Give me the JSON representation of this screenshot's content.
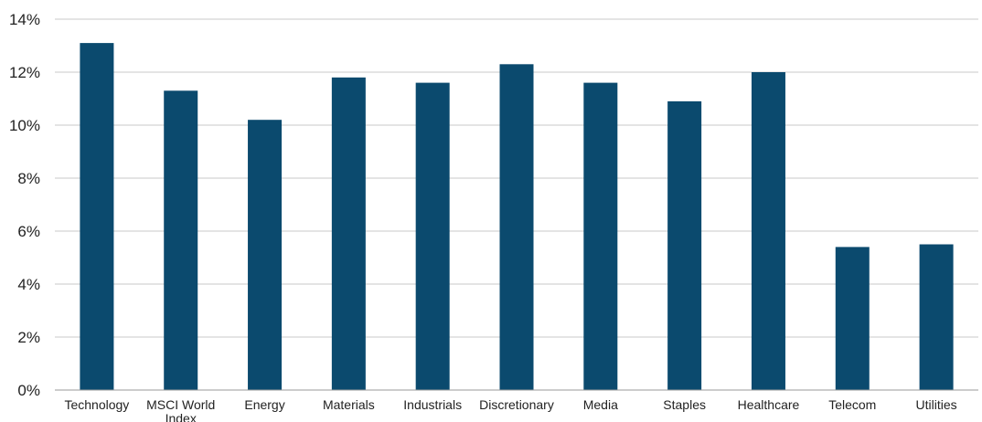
{
  "chart_data": {
    "type": "bar",
    "title": "",
    "xlabel": "",
    "ylabel": "",
    "categories": [
      "Technology",
      "MSCI World Index",
      "Energy",
      "Materials",
      "Industrials",
      "Discretionary",
      "Media",
      "Staples",
      "Healthcare",
      "Telecom",
      "Utilities"
    ],
    "category_lines": [
      [
        "Technology"
      ],
      [
        "MSCI World",
        "Index"
      ],
      [
        "Energy"
      ],
      [
        "Materials"
      ],
      [
        "Industrials"
      ],
      [
        "Discretionary"
      ],
      [
        "Media"
      ],
      [
        "Staples"
      ],
      [
        "Healthcare"
      ],
      [
        "Telecom"
      ],
      [
        "Utilities"
      ]
    ],
    "values": [
      13.1,
      11.3,
      10.2,
      11.8,
      11.6,
      12.3,
      11.6,
      10.9,
      12.0,
      5.4,
      5.5
    ],
    "ylim": [
      0,
      14
    ],
    "yticks": [
      0,
      2,
      4,
      6,
      8,
      10,
      12,
      14
    ],
    "ytick_labels": [
      "0%",
      "2%",
      "4%",
      "6%",
      "8%",
      "10%",
      "12%",
      "14%"
    ],
    "grid": true,
    "legend": "none",
    "bar_color": "#0B4A6E",
    "grid_color": "#C8C8C8",
    "axis_color": "#9A9A9A"
  }
}
